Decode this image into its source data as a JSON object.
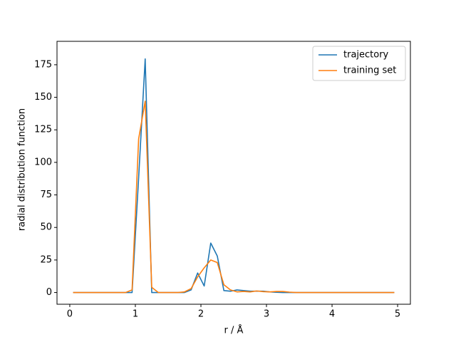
{
  "chart_data": {
    "type": "line",
    "xlabel": "r / Å",
    "ylabel": "radial distribution function",
    "x": [
      0.05,
      0.15,
      0.25,
      0.35,
      0.45,
      0.55,
      0.65,
      0.75,
      0.85,
      0.95,
      1.05,
      1.15,
      1.25,
      1.35,
      1.45,
      1.55,
      1.65,
      1.75,
      1.85,
      1.95,
      2.05,
      2.15,
      2.25,
      2.35,
      2.45,
      2.55,
      2.65,
      2.75,
      2.85,
      2.95,
      3.05,
      3.15,
      3.25,
      3.35,
      3.45,
      3.55,
      3.65,
      3.75,
      3.85,
      3.95,
      4.05,
      4.15,
      4.25,
      4.35,
      4.45,
      4.55,
      4.65,
      4.75,
      4.85,
      4.95
    ],
    "series": [
      {
        "name": "trajectory",
        "color": "#1f77b4",
        "values": [
          0,
          0,
          0,
          0,
          0,
          0,
          0,
          0,
          0,
          0,
          88,
          179.5,
          0,
          0,
          0,
          0,
          0,
          0,
          2,
          15,
          5,
          38,
          28,
          1.5,
          1,
          2,
          1.5,
          1,
          1,
          1,
          0.5,
          0.2,
          0,
          0,
          0,
          0,
          0,
          0,
          0,
          0,
          0,
          0,
          0,
          0,
          0,
          0,
          0,
          0,
          0,
          0
        ]
      },
      {
        "name": "training set",
        "color": "#ff7f0e",
        "values": [
          0,
          0,
          0,
          0,
          0,
          0,
          0,
          0,
          0,
          2,
          118,
          147,
          4,
          0,
          0,
          0,
          0,
          0.5,
          3,
          12,
          19,
          25,
          23,
          6,
          2,
          0.5,
          0.8,
          0.5,
          1.2,
          0.7,
          0.5,
          0.8,
          0.8,
          0.3,
          0,
          0,
          0,
          0,
          0,
          0,
          0,
          0,
          0,
          0,
          0,
          0,
          0,
          0,
          0,
          0
        ]
      }
    ],
    "xlim": [
      -0.195,
      5.195
    ],
    "ylim": [
      -9,
      193
    ],
    "xticks": [
      0,
      1,
      2,
      3,
      4,
      5
    ],
    "yticks": [
      0,
      25,
      50,
      75,
      100,
      125,
      150,
      175
    ],
    "legend": "upper right"
  }
}
